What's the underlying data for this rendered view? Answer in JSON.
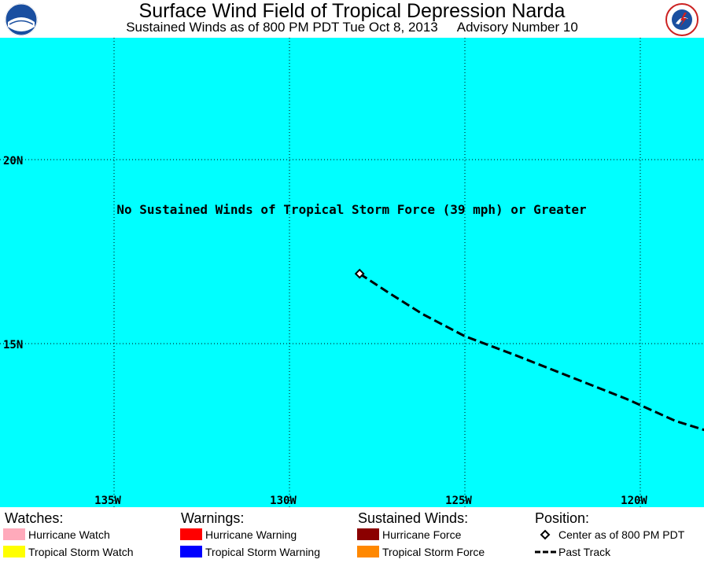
{
  "header": {
    "title": "Surface Wind Field of Tropical Depression Narda",
    "subtitle_left": "Sustained Winds as of 800 PM PDT Tue Oct 8, 2013",
    "subtitle_right": "Advisory Number 10",
    "logo_left": "NOAA",
    "logo_right": "NATIONAL WEATHER SERVICE"
  },
  "map": {
    "ocean_color": "#00ffff",
    "notice": "No Sustained Winds of Tropical Storm Force (39 mph) or Greater",
    "lat_labels": [
      "20N",
      "15N"
    ],
    "lon_labels": [
      "135W",
      "130W",
      "125W",
      "120W"
    ],
    "center_position": {
      "lon": -128.0,
      "lat": 16.9
    },
    "past_track": [
      {
        "lon": -128.0,
        "lat": 16.9
      },
      {
        "lon": -127.2,
        "lat": 16.4
      },
      {
        "lon": -126.2,
        "lat": 15.8
      },
      {
        "lon": -125.0,
        "lat": 15.2
      },
      {
        "lon": -123.6,
        "lat": 14.7
      },
      {
        "lon": -122.0,
        "lat": 14.1
      },
      {
        "lon": -120.4,
        "lat": 13.5
      },
      {
        "lon": -119.0,
        "lat": 12.9
      },
      {
        "lon": -118.0,
        "lat": 12.6
      }
    ]
  },
  "legend": {
    "watches": {
      "heading": "Watches:",
      "items": [
        {
          "label": "Hurricane Watch",
          "color": "#ffaabb"
        },
        {
          "label": "Tropical Storm Watch",
          "color": "#ffff00"
        }
      ]
    },
    "warnings": {
      "heading": "Warnings:",
      "items": [
        {
          "label": "Hurricane Warning",
          "color": "#ff0000"
        },
        {
          "label": "Tropical Storm Warning",
          "color": "#0000ff"
        }
      ]
    },
    "sustained_winds": {
      "heading": "Sustained Winds:",
      "items": [
        {
          "label": "Hurricane Force",
          "color": "#8b0000"
        },
        {
          "label": "Tropical Storm Force",
          "color": "#ff8800"
        }
      ]
    },
    "position": {
      "heading": "Position:",
      "center_label": "Center as of 800 PM PDT",
      "track_label": "Past Track"
    }
  }
}
